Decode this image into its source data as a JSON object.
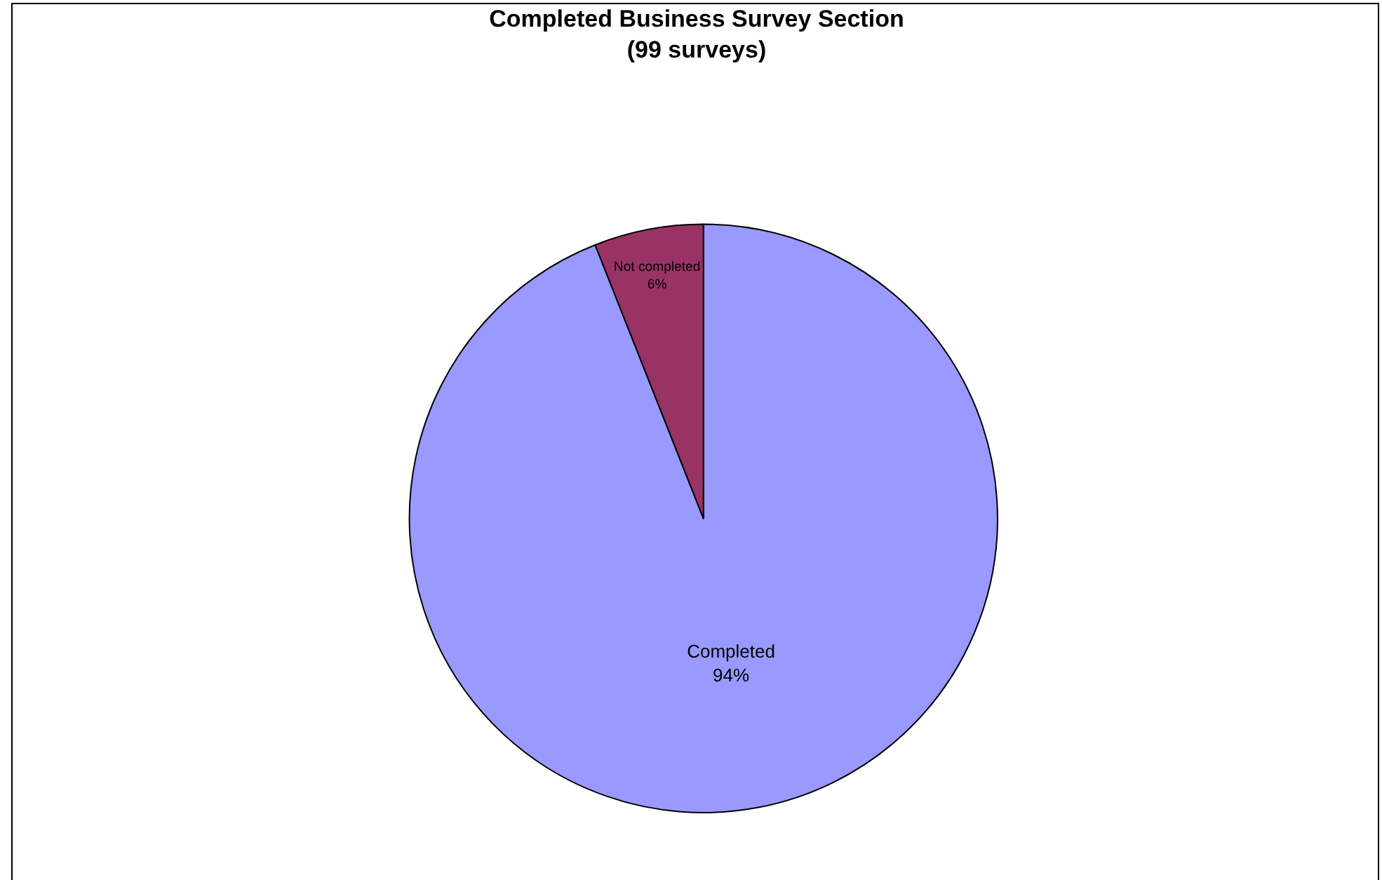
{
  "chart_data": {
    "type": "pie",
    "title": "Completed Business Survey Section\n(99 surveys)",
    "categories": [
      "Completed",
      "Not completed"
    ],
    "values": [
      94,
      6
    ],
    "value_labels": [
      "94%",
      "6%"
    ],
    "colors": [
      "#9999ff",
      "#993366"
    ]
  }
}
